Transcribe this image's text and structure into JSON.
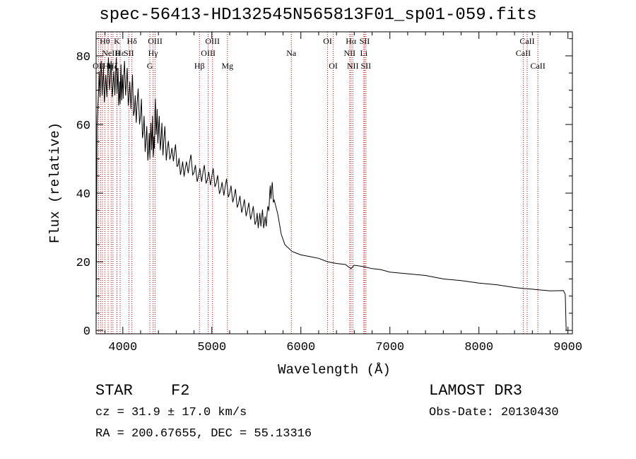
{
  "title": "spec-56413-HD132545N565813F01_sp01-059.fits",
  "info": {
    "object_class": "STAR",
    "subclass": "F2",
    "cz": "cz = 31.9 ± 17.0 km/s",
    "radec": "RA = 200.67655, DEC =  55.13316",
    "survey": "LAMOST DR3",
    "obs_date": "Obs-Date: 20130430"
  },
  "chart_data": {
    "type": "line",
    "xlabel": "Wavelength (Å)",
    "ylabel": "Flux (relative)",
    "xlim": [
      3700,
      9050
    ],
    "ylim": [
      -1,
      87
    ],
    "xticks": [
      4000,
      5000,
      6000,
      7000,
      8000,
      9000
    ],
    "yticks": [
      0,
      20,
      40,
      60,
      80
    ],
    "series": [
      {
        "name": "flux",
        "x": [
          3700,
          3710,
          3730,
          3750,
          3775,
          3800,
          3830,
          3860,
          3890,
          3920,
          3940,
          3960,
          3975,
          3990,
          4010,
          4040,
          4070,
          4100,
          4130,
          4160,
          4200,
          4230,
          4260,
          4290,
          4310,
          4330,
          4345,
          4360,
          4380,
          4400,
          4430,
          4460,
          4500,
          4540,
          4580,
          4620,
          4660,
          4700,
          4750,
          4800,
          4850,
          4900,
          4950,
          5000,
          5050,
          5100,
          5150,
          5200,
          5250,
          5300,
          5350,
          5400,
          5450,
          5500,
          5530,
          5560,
          5590,
          5620,
          5650,
          5670,
          5700,
          5740,
          5780,
          5820,
          5860,
          5900,
          5950,
          6000,
          6100,
          6200,
          6300,
          6400,
          6500,
          6562,
          6600,
          6700,
          6800,
          6900,
          7000,
          7200,
          7400,
          7600,
          7800,
          8000,
          8200,
          8400,
          8500,
          8600,
          8800,
          8950,
          8970,
          8980
        ],
        "y": [
          0,
          60,
          71,
          74,
          72,
          70,
          75,
          74,
          71,
          75,
          72,
          68,
          73,
          70,
          74,
          72,
          68,
          70,
          64,
          66,
          63,
          58,
          55,
          53,
          56,
          58,
          52,
          63,
          60,
          58,
          56,
          55,
          53,
          51,
          52,
          48,
          47,
          47,
          49,
          46,
          45,
          46,
          44,
          45,
          43,
          41,
          42,
          40,
          39,
          37,
          36,
          35,
          34,
          32,
          32,
          33,
          31,
          34,
          40,
          41,
          38,
          34,
          28,
          25,
          24,
          23,
          22.5,
          22,
          21.5,
          21,
          20,
          19.5,
          19.2,
          18,
          19,
          18.6,
          18,
          17.7,
          17,
          16.5,
          16,
          15,
          14.5,
          13.8,
          13.3,
          12.5,
          12.2,
          12,
          11.5,
          11.6,
          10.5,
          0
        ]
      }
    ],
    "lines": [
      {
        "wave": 3727,
        "label": "OII",
        "row": 3
      },
      {
        "wave": 3750,
        "label": "",
        "row": 0
      },
      {
        "wave": 3771,
        "label": "",
        "row": 0
      },
      {
        "wave": 3798,
        "label": "Hθ",
        "row": 1
      },
      {
        "wave": 3835,
        "label": "Hη",
        "row": 3
      },
      {
        "wave": 3869,
        "label": "NeIII",
        "row": 2
      },
      {
        "wave": 3889,
        "label": "Hζ",
        "row": 3
      },
      {
        "wave": 3934,
        "label": "K",
        "row": 1
      },
      {
        "wave": 3970,
        "label": "Hε",
        "row": 2
      },
      {
        "wave": 4068,
        "label": "SII",
        "row": 2
      },
      {
        "wave": 4102,
        "label": "Hδ",
        "row": 1
      },
      {
        "wave": 4304,
        "label": "G",
        "row": 3
      },
      {
        "wave": 4340,
        "label": "Hγ",
        "row": 2
      },
      {
        "wave": 4363,
        "label": "OIII",
        "row": 1
      },
      {
        "wave": 4861,
        "label": "Hβ",
        "row": 3
      },
      {
        "wave": 4959,
        "label": "OIII",
        "row": 2
      },
      {
        "wave": 5007,
        "label": "OIII",
        "row": 1
      },
      {
        "wave": 5175,
        "label": "Mg",
        "row": 3
      },
      {
        "wave": 5893,
        "label": "Na",
        "row": 2
      },
      {
        "wave": 6300,
        "label": "OI",
        "row": 1
      },
      {
        "wave": 6364,
        "label": "OI",
        "row": 3
      },
      {
        "wave": 6548,
        "label": "NII",
        "row": 2
      },
      {
        "wave": 6563,
        "label": "Hα",
        "row": 1
      },
      {
        "wave": 6583,
        "label": "NII",
        "row": 3
      },
      {
        "wave": 6707,
        "label": "Li",
        "row": 2
      },
      {
        "wave": 6716,
        "label": "SII",
        "row": 1
      },
      {
        "wave": 6731,
        "label": "SII",
        "row": 3
      },
      {
        "wave": 8498,
        "label": "CaII",
        "row": 2
      },
      {
        "wave": 8542,
        "label": "CaII",
        "row": 1
      },
      {
        "wave": 8662,
        "label": "CaII",
        "row": 3
      }
    ],
    "colors": {
      "line_marker": "#cc0000",
      "spectrum": "#000000"
    }
  }
}
